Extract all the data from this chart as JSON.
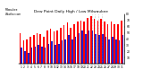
{
  "title": "Dew Point Daily High / Low Milwaukee",
  "left_label": "Milwaukee\nWeather.com",
  "background_color": "#ffffff",
  "bar_width": 0.42,
  "days": [
    1,
    2,
    3,
    4,
    5,
    6,
    7,
    8,
    9,
    10,
    11,
    12,
    13,
    14,
    15,
    16,
    17,
    18,
    19,
    20,
    21,
    22,
    23,
    24,
    25,
    26,
    27,
    28,
    29,
    30,
    31
  ],
  "highs": [
    50,
    38,
    40,
    44,
    46,
    50,
    48,
    44,
    54,
    56,
    52,
    54,
    58,
    62,
    66,
    58,
    63,
    68,
    70,
    68,
    74,
    76,
    72,
    70,
    72,
    68,
    64,
    68,
    64,
    64,
    70
  ],
  "lows": [
    26,
    20,
    18,
    26,
    28,
    30,
    28,
    26,
    32,
    36,
    30,
    32,
    38,
    40,
    46,
    40,
    44,
    50,
    54,
    48,
    54,
    54,
    48,
    46,
    48,
    44,
    40,
    44,
    40,
    38,
    46
  ],
  "high_color": "#ff0000",
  "low_color": "#2020cc",
  "ylim": [
    0,
    80
  ],
  "yticks_right": [
    10,
    20,
    30,
    40,
    50,
    60,
    70,
    80
  ],
  "dotted_day_ranges": [
    22,
    23,
    24,
    25
  ]
}
